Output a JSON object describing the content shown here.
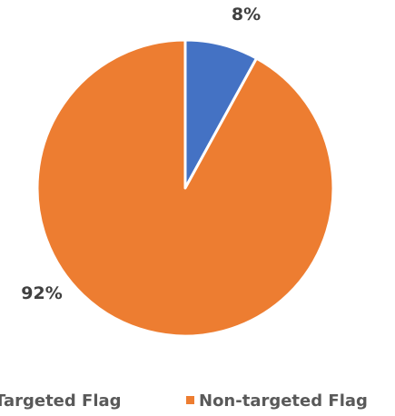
{
  "chart_data": {
    "type": "pie",
    "title": "",
    "categories": [
      "Targeted Flag",
      "Non-targeted Flag"
    ],
    "values": [
      8,
      92
    ],
    "data_labels": [
      "8%",
      "92%"
    ],
    "colors": [
      "#4472C4",
      "#ED7D31"
    ],
    "start_angle_deg": 0,
    "direction": "clockwise",
    "legend": {
      "position": "bottom",
      "entries": [
        "Targeted Flag",
        "Non-targeted Flag"
      ]
    }
  }
}
